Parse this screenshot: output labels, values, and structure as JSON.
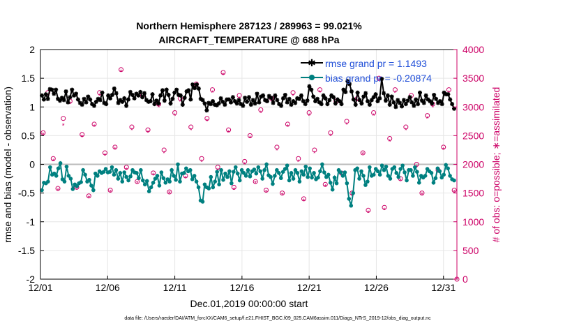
{
  "chart_data": {
    "type": "line",
    "title": "Northern Hemisphere 287123 / 289963 = 99.021%",
    "subtitle": "AIRCRAFT_TEMPERATURE @ 688 hPa",
    "xlabel": "Dec.01,2019 00:00:00 start",
    "ylabel": "rmse and bias (model - observation)",
    "ylabel_right": "# of obs: o=possible; ∗=assimilated",
    "footer": "data file: /Users/raeder/DAI/ATM_forcXX/CAM6_setup/f.e21.FHIST_BGC.f09_025.CAM6assim.011/Diags_NTrS_2019-12/obs_diag_output.nc",
    "x_ticks": [
      "12/01",
      "12/06",
      "12/11",
      "12/16",
      "12/21",
      "12/26",
      "12/31"
    ],
    "x_tick_days": [
      0,
      5,
      10,
      15,
      20,
      25,
      30
    ],
    "xlim": [
      0,
      31
    ],
    "ylim": [
      -2,
      2
    ],
    "y_ticks": [
      "-2",
      "-1.5",
      "-1",
      "-0.5",
      "0",
      "0.5",
      "1",
      "1.5",
      "2"
    ],
    "ylim_right": [
      0,
      4000
    ],
    "y_ticks_right": [
      "0",
      "500",
      "1000",
      "1500",
      "2000",
      "2500",
      "3000",
      "3500",
      "4000"
    ],
    "grid": true,
    "legend_position": "top-right",
    "series": [
      {
        "name": "rmse grand pr = 1.1493",
        "axis": "left",
        "color": "#000000",
        "marker": "star",
        "values": [
          1.2,
          1.13,
          1.22,
          1.14,
          1.31,
          1.3,
          1.23,
          1.3,
          1.14,
          1.11,
          1.16,
          1.12,
          1.27,
          1.08,
          1.17,
          1.3,
          1.2,
          1.23,
          1.13,
          1.07,
          1.04,
          1.14,
          1.08,
          1.18,
          1.13,
          1.05,
          1.02,
          1.09,
          1.14,
          1.12,
          1.25,
          1.07,
          1.05,
          1.2,
          1.15,
          1.21,
          1.32,
          1.24,
          1.07,
          1.12,
          1.09,
          1.15,
          1.02,
          1.13,
          1.26,
          1.21,
          1.15,
          1.23,
          1.2,
          1.26,
          1.17,
          1.24,
          1.12,
          1.09,
          1.1,
          1.22,
          1.05,
          1.11,
          1.06,
          1.2,
          1.29,
          1.11,
          1.3,
          1.21,
          1.06,
          1.14,
          1.25,
          1.3,
          1.21,
          1.2,
          1.04,
          1.16,
          1.27,
          1.29,
          1.13,
          1.39,
          1.33,
          1.39,
          1.32,
          1.14,
          1.12,
          1.06,
          0.94,
          1.07,
          1.05,
          1.1,
          1.04,
          1.03,
          1.06,
          1.15,
          1.09,
          1.04,
          1.13,
          1.13,
          1.08,
          1.17,
          1.1,
          1.06,
          1.12,
          1.05,
          1.02,
          1.16,
          1.09,
          1.17,
          1.04,
          1.12,
          1.06,
          1.23,
          1.08,
          1.18,
          1.2,
          1.12,
          1.1,
          1.19,
          1.16,
          1.07,
          1.2,
          1.12,
          1.05,
          1.02,
          1.15,
          1.21,
          1.08,
          1.14,
          1.04,
          1.1,
          1.07,
          1.15,
          1.14,
          1.2,
          1.1,
          1.05,
          1.11,
          1.36,
          1.3,
          1.18,
          1.1,
          1.14,
          1.08,
          1.05,
          1.2,
          1.15,
          1.05,
          1.12,
          1.2,
          1.17,
          1.06,
          1.13,
          1.1,
          1.05,
          1.3,
          1.26,
          1.45,
          1.4,
          1.27,
          1.13,
          1.04,
          1.25,
          1.12,
          1.06,
          1.18,
          1.24,
          1.1,
          1.04,
          1.12,
          1.17,
          1.22,
          1.1,
          1.15,
          1.49,
          1.24,
          1.11,
          1.2,
          1.04,
          1.18,
          1.08,
          1.0,
          1.12,
          1.07,
          1.01,
          1.12,
          1.05,
          1.11,
          1.17,
          1.08,
          1.02,
          1.13,
          1.05,
          1.25,
          1.11,
          1.07,
          1.2,
          1.13,
          1.1,
          1.06,
          1.21,
          1.14,
          1.07,
          1.1,
          1.05,
          1.25,
          1.22,
          1.22,
          1.13,
          1.05,
          0.97
        ]
      },
      {
        "name": "bias grand pr = -0.20874",
        "axis": "left",
        "color": "#008080",
        "marker": "circle",
        "values": [
          -0.45,
          -0.32,
          -0.33,
          -0.3,
          -0.05,
          -0.18,
          -0.16,
          -0.2,
          -0.07,
          0.02,
          -0.26,
          -0.3,
          -0.04,
          -0.2,
          -0.25,
          -0.43,
          -0.35,
          -0.38,
          -0.33,
          -0.31,
          -0.1,
          -0.18,
          -0.3,
          -0.27,
          -0.37,
          -0.45,
          -0.16,
          -0.2,
          -0.12,
          -0.15,
          -0.13,
          -0.08,
          -0.14,
          -0.13,
          -0.05,
          -0.18,
          -0.1,
          -0.25,
          -0.15,
          -0.3,
          -0.14,
          -0.22,
          -0.28,
          -0.21,
          -0.1,
          -0.14,
          -0.15,
          -0.24,
          -0.1,
          -0.28,
          -0.35,
          -0.29,
          -0.47,
          -0.4,
          -0.32,
          -0.25,
          -0.2,
          -0.37,
          -0.14,
          -0.24,
          -0.32,
          -0.26,
          -0.3,
          -0.1,
          -0.2,
          -0.27,
          0.0,
          -0.3,
          -0.16,
          -0.15,
          -0.07,
          -0.12,
          -0.1,
          -0.26,
          -0.2,
          -0.3,
          -0.4,
          -0.63,
          -0.65,
          -0.35,
          -0.4,
          -0.42,
          -0.22,
          -0.4,
          -0.3,
          -0.13,
          -0.35,
          -0.1,
          -0.27,
          -0.16,
          -0.22,
          -0.12,
          -0.33,
          -0.13,
          -0.05,
          -0.16,
          -0.28,
          -0.1,
          -0.15,
          -0.2,
          -0.1,
          -0.21,
          -0.12,
          -0.09,
          -0.16,
          -0.05,
          -0.12,
          -0.25,
          -0.1,
          0.0,
          -0.19,
          -0.22,
          -0.34,
          -0.2,
          -0.1,
          -0.15,
          -0.24,
          -0.13,
          -0.08,
          -0.02,
          -0.28,
          -0.15,
          -0.25,
          -0.1,
          -0.15,
          -0.3,
          -0.12,
          -0.18,
          -0.04,
          -0.22,
          -0.07,
          -0.23,
          -0.15,
          -0.26,
          -0.23,
          -0.12,
          0.0,
          -0.14,
          -0.22,
          -0.18,
          -0.32,
          -0.44,
          -0.23,
          -0.33,
          -0.1,
          -0.14,
          -0.2,
          -0.14,
          -0.33,
          -0.6,
          -0.72,
          -0.5,
          -0.1,
          -0.07,
          -0.25,
          -0.12,
          -0.2,
          -0.36,
          -0.3,
          -0.05,
          -0.2,
          -0.18,
          -0.08,
          -0.12,
          -0.18,
          -0.02,
          -0.1,
          -0.04,
          -0.2,
          -0.25,
          -0.08,
          -0.05,
          -0.15,
          -0.22,
          -0.08,
          -0.02,
          -0.14,
          -0.28,
          -0.1,
          -0.1,
          -0.2,
          -0.05,
          -0.13,
          -0.32,
          -0.2,
          -0.23,
          -0.2,
          -0.08,
          -0.12,
          -0.15,
          -0.32,
          -0.24,
          -0.07,
          -0.12,
          -0.23,
          -0.18,
          -0.01,
          -0.07,
          -0.2,
          -0.26,
          -0.28
        ]
      }
    ],
    "obs_points": [
      {
        "day": 0.2,
        "possible": 2550,
        "assimilated": 2520
      },
      {
        "day": 0.55,
        "possible": 3250,
        "assimilated": 3200
      },
      {
        "day": 0.95,
        "possible": 2100,
        "assimilated": 2060
      },
      {
        "day": 1.3,
        "possible": 1580,
        "assimilated": 1550
      },
      {
        "day": 1.7,
        "possible": 2800,
        "assimilated": 2680
      },
      {
        "day": 2.2,
        "possible": 3100,
        "assimilated": 3060
      },
      {
        "day": 2.7,
        "possible": 1600,
        "assimilated": 1580
      },
      {
        "day": 3.1,
        "possible": 2520,
        "assimilated": 2480
      },
      {
        "day": 3.6,
        "possible": 1450,
        "assimilated": 1420
      },
      {
        "day": 4.0,
        "possible": 2700,
        "assimilated": 2660
      },
      {
        "day": 4.4,
        "possible": 3250,
        "assimilated": 3200
      },
      {
        "day": 4.8,
        "possible": 2200,
        "assimilated": 2160
      },
      {
        "day": 5.2,
        "possible": 1550,
        "assimilated": 1520
      },
      {
        "day": 5.55,
        "possible": 2300,
        "assimilated": 2270
      },
      {
        "day": 6.0,
        "possible": 3650,
        "assimilated": 3620
      },
      {
        "day": 6.4,
        "possible": 1950,
        "assimilated": 1910
      },
      {
        "day": 6.8,
        "possible": 2650,
        "assimilated": 2600
      },
      {
        "day": 7.2,
        "possible": 1700,
        "assimilated": 1680
      },
      {
        "day": 7.6,
        "possible": 3200,
        "assimilated": 3150
      },
      {
        "day": 8.0,
        "possible": 2600,
        "assimilated": 2560
      },
      {
        "day": 8.4,
        "possible": 1850,
        "assimilated": 1820
      },
      {
        "day": 8.8,
        "possible": 3050,
        "assimilated": 3000
      },
      {
        "day": 9.2,
        "possible": 2250,
        "assimilated": 2200
      },
      {
        "day": 9.6,
        "possible": 1520,
        "assimilated": 1500
      },
      {
        "day": 10.0,
        "possible": 2900,
        "assimilated": 2850
      },
      {
        "day": 10.4,
        "possible": 3150,
        "assimilated": 3100
      },
      {
        "day": 10.8,
        "possible": 1800,
        "assimilated": 1760
      },
      {
        "day": 11.2,
        "possible": 2650,
        "assimilated": 2600
      },
      {
        "day": 11.6,
        "possible": 3400,
        "assimilated": 3350
      },
      {
        "day": 12.0,
        "possible": 2100,
        "assimilated": 2050
      },
      {
        "day": 12.4,
        "possible": 2800,
        "assimilated": 2760
      },
      {
        "day": 12.8,
        "possible": 3300,
        "assimilated": 3250
      },
      {
        "day": 13.2,
        "possible": 1950,
        "assimilated": 1900
      },
      {
        "day": 13.6,
        "possible": 3600,
        "assimilated": 3560
      },
      {
        "day": 14.0,
        "possible": 2600,
        "assimilated": 2560
      },
      {
        "day": 14.4,
        "possible": 1600,
        "assimilated": 1560
      },
      {
        "day": 14.8,
        "possible": 3200,
        "assimilated": 3150
      },
      {
        "day": 15.2,
        "possible": 2050,
        "assimilated": 2000
      },
      {
        "day": 15.6,
        "possible": 2500,
        "assimilated": 2460
      },
      {
        "day": 16.0,
        "possible": 1700,
        "assimilated": 1680
      },
      {
        "day": 16.4,
        "possible": 2950,
        "assimilated": 2900
      },
      {
        "day": 16.8,
        "possible": 1550,
        "assimilated": 1520
      },
      {
        "day": 17.2,
        "possible": 3150,
        "assimilated": 3100
      },
      {
        "day": 17.6,
        "possible": 2300,
        "assimilated": 2250
      },
      {
        "day": 18.0,
        "possible": 1500,
        "assimilated": 1470
      },
      {
        "day": 18.4,
        "possible": 2700,
        "assimilated": 2660
      },
      {
        "day": 18.8,
        "possible": 3250,
        "assimilated": 3200
      },
      {
        "day": 19.2,
        "possible": 2100,
        "assimilated": 2050
      },
      {
        "day": 19.6,
        "possible": 1400,
        "assimilated": 1370
      },
      {
        "day": 20.0,
        "possible": 2900,
        "assimilated": 2850
      },
      {
        "day": 20.4,
        "possible": 2250,
        "assimilated": 2200
      },
      {
        "day": 20.8,
        "possible": 3300,
        "assimilated": 3260
      },
      {
        "day": 21.2,
        "possible": 1650,
        "assimilated": 1620
      },
      {
        "day": 21.6,
        "possible": 2550,
        "assimilated": 2500
      },
      {
        "day": 22.0,
        "possible": 3100,
        "assimilated": 3050
      },
      {
        "day": 22.4,
        "possible": 1850,
        "assimilated": 1810
      },
      {
        "day": 22.8,
        "possible": 2750,
        "assimilated": 2700
      },
      {
        "day": 23.2,
        "possible": 1500,
        "assimilated": 1460
      },
      {
        "day": 23.6,
        "possible": 3150,
        "assimilated": 3100
      },
      {
        "day": 24.0,
        "possible": 2200,
        "assimilated": 2180
      },
      {
        "day": 24.4,
        "possible": 1200,
        "assimilated": 1160
      },
      {
        "day": 24.8,
        "possible": 2900,
        "assimilated": 2850
      },
      {
        "day": 25.2,
        "possible": 3500,
        "assimilated": 3460
      },
      {
        "day": 25.6,
        "possible": 1250,
        "assimilated": 1210
      },
      {
        "day": 26.0,
        "possible": 2450,
        "assimilated": 2400
      },
      {
        "day": 26.4,
        "possible": 3300,
        "assimilated": 3250
      },
      {
        "day": 26.8,
        "possible": 1750,
        "assimilated": 1720
      },
      {
        "day": 27.2,
        "possible": 2650,
        "assimilated": 2600
      },
      {
        "day": 27.6,
        "possible": 3200,
        "assimilated": 3150
      },
      {
        "day": 28.0,
        "possible": 2000,
        "assimilated": 1960
      },
      {
        "day": 28.4,
        "possible": 1500,
        "assimilated": 1480
      },
      {
        "day": 28.8,
        "possible": 2850,
        "assimilated": 2800
      },
      {
        "day": 29.2,
        "possible": 3050,
        "assimilated": 3000
      },
      {
        "day": 29.6,
        "possible": 1900,
        "assimilated": 1860
      },
      {
        "day": 30.0,
        "possible": 2300,
        "assimilated": 2260
      },
      {
        "day": 30.4,
        "possible": 3300,
        "assimilated": 3250
      },
      {
        "day": 30.8,
        "possible": 1550,
        "assimilated": 1520
      },
      {
        "day": 31.0,
        "possible": 0,
        "assimilated": 0
      }
    ],
    "colors": {
      "obs": "#cc0066",
      "zero_line": "#bbbbbb",
      "grid": "#e6e6e6",
      "legend_text": "#1f4ed8"
    }
  }
}
